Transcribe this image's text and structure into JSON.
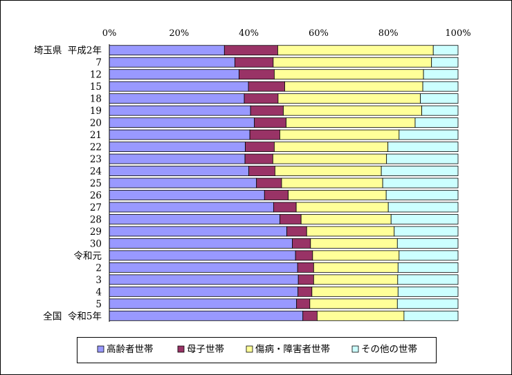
{
  "colors": {
    "series": [
      "#9999ff",
      "#993366",
      "#ffff99",
      "#ccffff"
    ],
    "edge": "#000000",
    "frame": "#000000"
  },
  "chart_data": {
    "type": "bar",
    "orientation": "horizontal",
    "stacked": "100%",
    "title": "",
    "xlabel": "",
    "ylabel": "",
    "xlim": [
      0,
      100
    ],
    "x_ticks": [
      "0%",
      "20%",
      "40%",
      "60%",
      "80%",
      "100%"
    ],
    "grid": false,
    "legend_position": "bottom",
    "categories": [
      "埼玉県 平成2年",
      "7",
      "12",
      "15",
      "18",
      "19",
      "20",
      "21",
      "22",
      "23",
      "24",
      "25",
      "26",
      "27",
      "28",
      "29",
      "30",
      "令和元",
      "2",
      "3",
      "4",
      "5",
      "全国 令和5年"
    ],
    "series": [
      {
        "name": "高齢者世帯",
        "values": [
          33.0,
          36.0,
          37.2,
          39.9,
          38.7,
          40.5,
          41.6,
          40.3,
          39.0,
          38.9,
          40.0,
          42.2,
          44.5,
          47.1,
          48.9,
          50.9,
          52.5,
          53.4,
          54.0,
          54.2,
          54.1,
          53.7,
          55.5
        ]
      },
      {
        "name": "母子世帯",
        "values": [
          15.3,
          11.0,
          10.1,
          10.4,
          9.7,
          9.4,
          9.1,
          8.6,
          8.3,
          8.0,
          7.5,
          7.2,
          6.8,
          6.5,
          6.1,
          5.7,
          5.2,
          4.9,
          4.6,
          4.4,
          4.0,
          3.8,
          4.1
        ]
      },
      {
        "name": "傷病・障害者世帯",
        "values": [
          44.6,
          45.4,
          42.8,
          39.6,
          40.8,
          39.7,
          37.0,
          34.2,
          32.6,
          32.6,
          30.5,
          29.0,
          28.1,
          26.4,
          25.8,
          25.1,
          24.9,
          24.8,
          24.2,
          24.1,
          24.7,
          25.1,
          24.9
        ]
      },
      {
        "name": "その他の世帯",
        "values": [
          7.1,
          7.6,
          9.9,
          10.1,
          10.8,
          10.4,
          12.3,
          16.9,
          20.1,
          20.5,
          22.0,
          21.6,
          20.6,
          20.0,
          19.2,
          18.3,
          17.4,
          16.9,
          17.2,
          17.3,
          17.2,
          17.4,
          15.5
        ]
      }
    ]
  }
}
